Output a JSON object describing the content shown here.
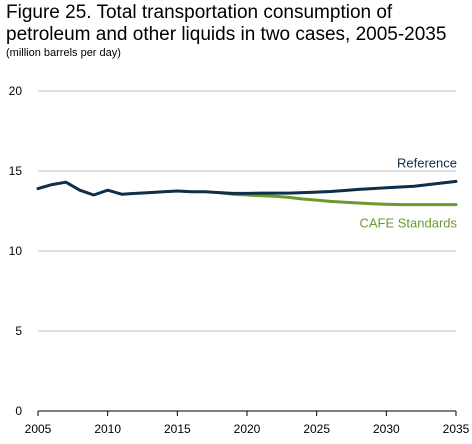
{
  "chart_data": {
    "type": "line",
    "title": "Figure 25. Total transportation consumption of petroleum and other liquids in two cases, 2005-2035",
    "subtitle": "(million barrels per day)",
    "xlabel": "",
    "ylabel": "",
    "xlim": [
      2005,
      2035
    ],
    "ylim": [
      0,
      20
    ],
    "x_ticks": [
      2005,
      2010,
      2015,
      2020,
      2025,
      2030,
      2035
    ],
    "y_ticks": [
      0,
      5,
      10,
      15,
      20
    ],
    "grid": "horizontal",
    "series": [
      {
        "name": "Reference",
        "color": "#0e2e4a",
        "x": [
          2005,
          2006,
          2007,
          2008,
          2009,
          2010,
          2011,
          2012,
          2013,
          2014,
          2015,
          2016,
          2017,
          2018,
          2019,
          2020,
          2021,
          2022,
          2023,
          2024,
          2025,
          2026,
          2027,
          2028,
          2029,
          2030,
          2031,
          2032,
          2033,
          2034,
          2035
        ],
        "values": [
          13.9,
          14.15,
          14.3,
          13.8,
          13.5,
          13.8,
          13.55,
          13.6,
          13.65,
          13.7,
          13.75,
          13.7,
          13.7,
          13.65,
          13.6,
          13.6,
          13.62,
          13.62,
          13.62,
          13.65,
          13.68,
          13.72,
          13.78,
          13.85,
          13.9,
          13.95,
          14.0,
          14.05,
          14.15,
          14.25,
          14.35
        ]
      },
      {
        "name": "CAFE Standards",
        "color": "#6a9a2e",
        "x": [
          2018,
          2019,
          2020,
          2021,
          2022,
          2023,
          2024,
          2025,
          2026,
          2027,
          2028,
          2029,
          2030,
          2031,
          2032,
          2033,
          2034,
          2035
        ],
        "values": [
          13.65,
          13.55,
          13.5,
          13.45,
          13.42,
          13.35,
          13.25,
          13.18,
          13.1,
          13.05,
          13.0,
          12.95,
          12.92,
          12.9,
          12.9,
          12.9,
          12.9,
          12.9
        ]
      }
    ]
  }
}
